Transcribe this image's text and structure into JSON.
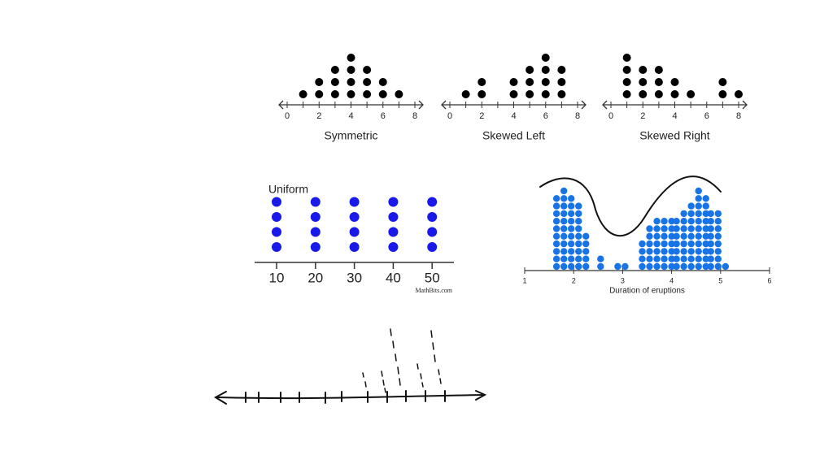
{
  "chart_data": [
    {
      "type": "dot",
      "xlabel": "Symmetric",
      "x": [
        1,
        2,
        3,
        4,
        5,
        6,
        7
      ],
      "values": [
        1,
        2,
        3,
        4,
        3,
        2,
        1
      ],
      "color": "#000000",
      "xlim": [
        0,
        8
      ],
      "xticks": [
        0,
        2,
        4,
        6,
        8
      ],
      "xminorticks": [
        1,
        3,
        5,
        7
      ]
    },
    {
      "type": "dot",
      "xlabel": "Skewed Left",
      "x": [
        1,
        2,
        4,
        5,
        6,
        7
      ],
      "values": [
        1,
        2,
        2,
        3,
        4,
        3
      ],
      "color": "#000000",
      "xlim": [
        0,
        8
      ],
      "xticks": [
        0,
        2,
        4,
        6,
        8
      ],
      "xminorticks": [
        1,
        3,
        5,
        7
      ]
    },
    {
      "type": "dot",
      "xlabel": "Skewed Right",
      "x": [
        1,
        2,
        3,
        4,
        5,
        7,
        8
      ],
      "values": [
        4,
        3,
        3,
        2,
        1,
        2,
        1
      ],
      "color": "#000000",
      "xlim": [
        0,
        8
      ],
      "xticks": [
        0,
        2,
        4,
        6,
        8
      ],
      "xminorticks": [
        1,
        3,
        5,
        7
      ]
    },
    {
      "type": "dotcat",
      "title": "Uniform",
      "categories": [
        "10",
        "20",
        "30",
        "40",
        "50"
      ],
      "values": [
        4,
        4,
        4,
        4,
        4
      ],
      "color": "#1a1ae8",
      "source": "MathBits.com"
    },
    {
      "type": "dot",
      "xlabel": "Duration of eruptions",
      "x": [
        1.65,
        1.8,
        1.95,
        2.1,
        2.25,
        2.55,
        2.9,
        3.05,
        3.4,
        3.55,
        3.7,
        3.85,
        4,
        4.1,
        4.25,
        4.4,
        4.55,
        4.7,
        4.8,
        4.95,
        5.1
      ],
      "values": [
        10,
        11,
        10,
        9,
        5,
        2,
        1,
        1,
        4,
        6,
        7,
        7,
        7,
        7,
        8,
        9,
        11,
        10,
        8,
        8,
        1
      ],
      "color": "#1874e6",
      "xlim": [
        1,
        6
      ],
      "xticks": [
        1,
        2,
        3,
        4,
        5,
        6
      ]
    }
  ]
}
